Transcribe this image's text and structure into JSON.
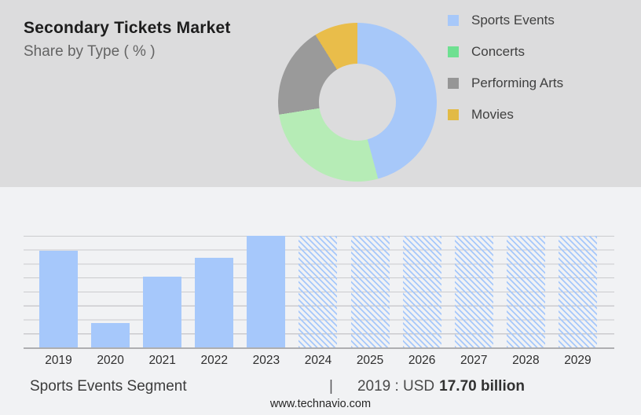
{
  "page": {
    "top_panel_bg": "#dcdcdd",
    "bottom_panel_bg": "#f1f2f4",
    "footer_url": "www.technavio.com"
  },
  "header": {
    "title": "Secondary Tickets Market",
    "subtitle": "Share by Type ( % )"
  },
  "legend": {
    "position": "right",
    "items": [
      {
        "label": "Sports Events",
        "color": "#a7c8f9"
      },
      {
        "label": "Concerts",
        "color": "#6ee091"
      },
      {
        "label": "Performing Arts",
        "color": "#969696"
      },
      {
        "label": "Movies",
        "color": "#e2ba45"
      }
    ]
  },
  "footer": {
    "segment_label": "Sports Events Segment",
    "separator": "|",
    "value_prefix": "2019 : USD",
    "value_bold": "17.70 billion"
  },
  "chart_data": [
    {
      "type": "pie",
      "subtype": "donut",
      "title": "Secondary Tickets Market — Share by Type ( % )",
      "labels": [
        "Sports Events",
        "Concerts",
        "Performing Arts",
        "Movies"
      ],
      "values_pct": [
        45.8,
        26.7,
        18.6,
        8.9
      ],
      "colors": [
        "#a7c8f9",
        "#b6ecb6",
        "#9a9a9a",
        "#e9bd4a"
      ],
      "start_angle_deg": 0,
      "direction": "clockwise",
      "hole_ratio": 0.49,
      "data_labels_shown": false,
      "legend_position": "right"
    },
    {
      "type": "bar",
      "categories": [
        "2019",
        "2020",
        "2021",
        "2022",
        "2023",
        "2024",
        "2025",
        "2026",
        "2027",
        "2028",
        "2029"
      ],
      "series": [
        {
          "name": "Sports Events Segment",
          "values_pct_of_max": [
            86.6,
            21.8,
            63.4,
            80.3,
            100,
            100,
            100,
            100,
            100,
            100,
            100
          ]
        }
      ],
      "forecast_start_index": 5,
      "forecast_style": "diagonal-hatch",
      "bar_color": "#a6c8fb",
      "hatch_color": "#a6c8fb",
      "grid": true,
      "grid_color": "#cbcbce",
      "axis_color": "#aeaeb1",
      "y_axis_labels_shown": false,
      "anchor_value": "2019 : USD 17.70 billion"
    }
  ]
}
